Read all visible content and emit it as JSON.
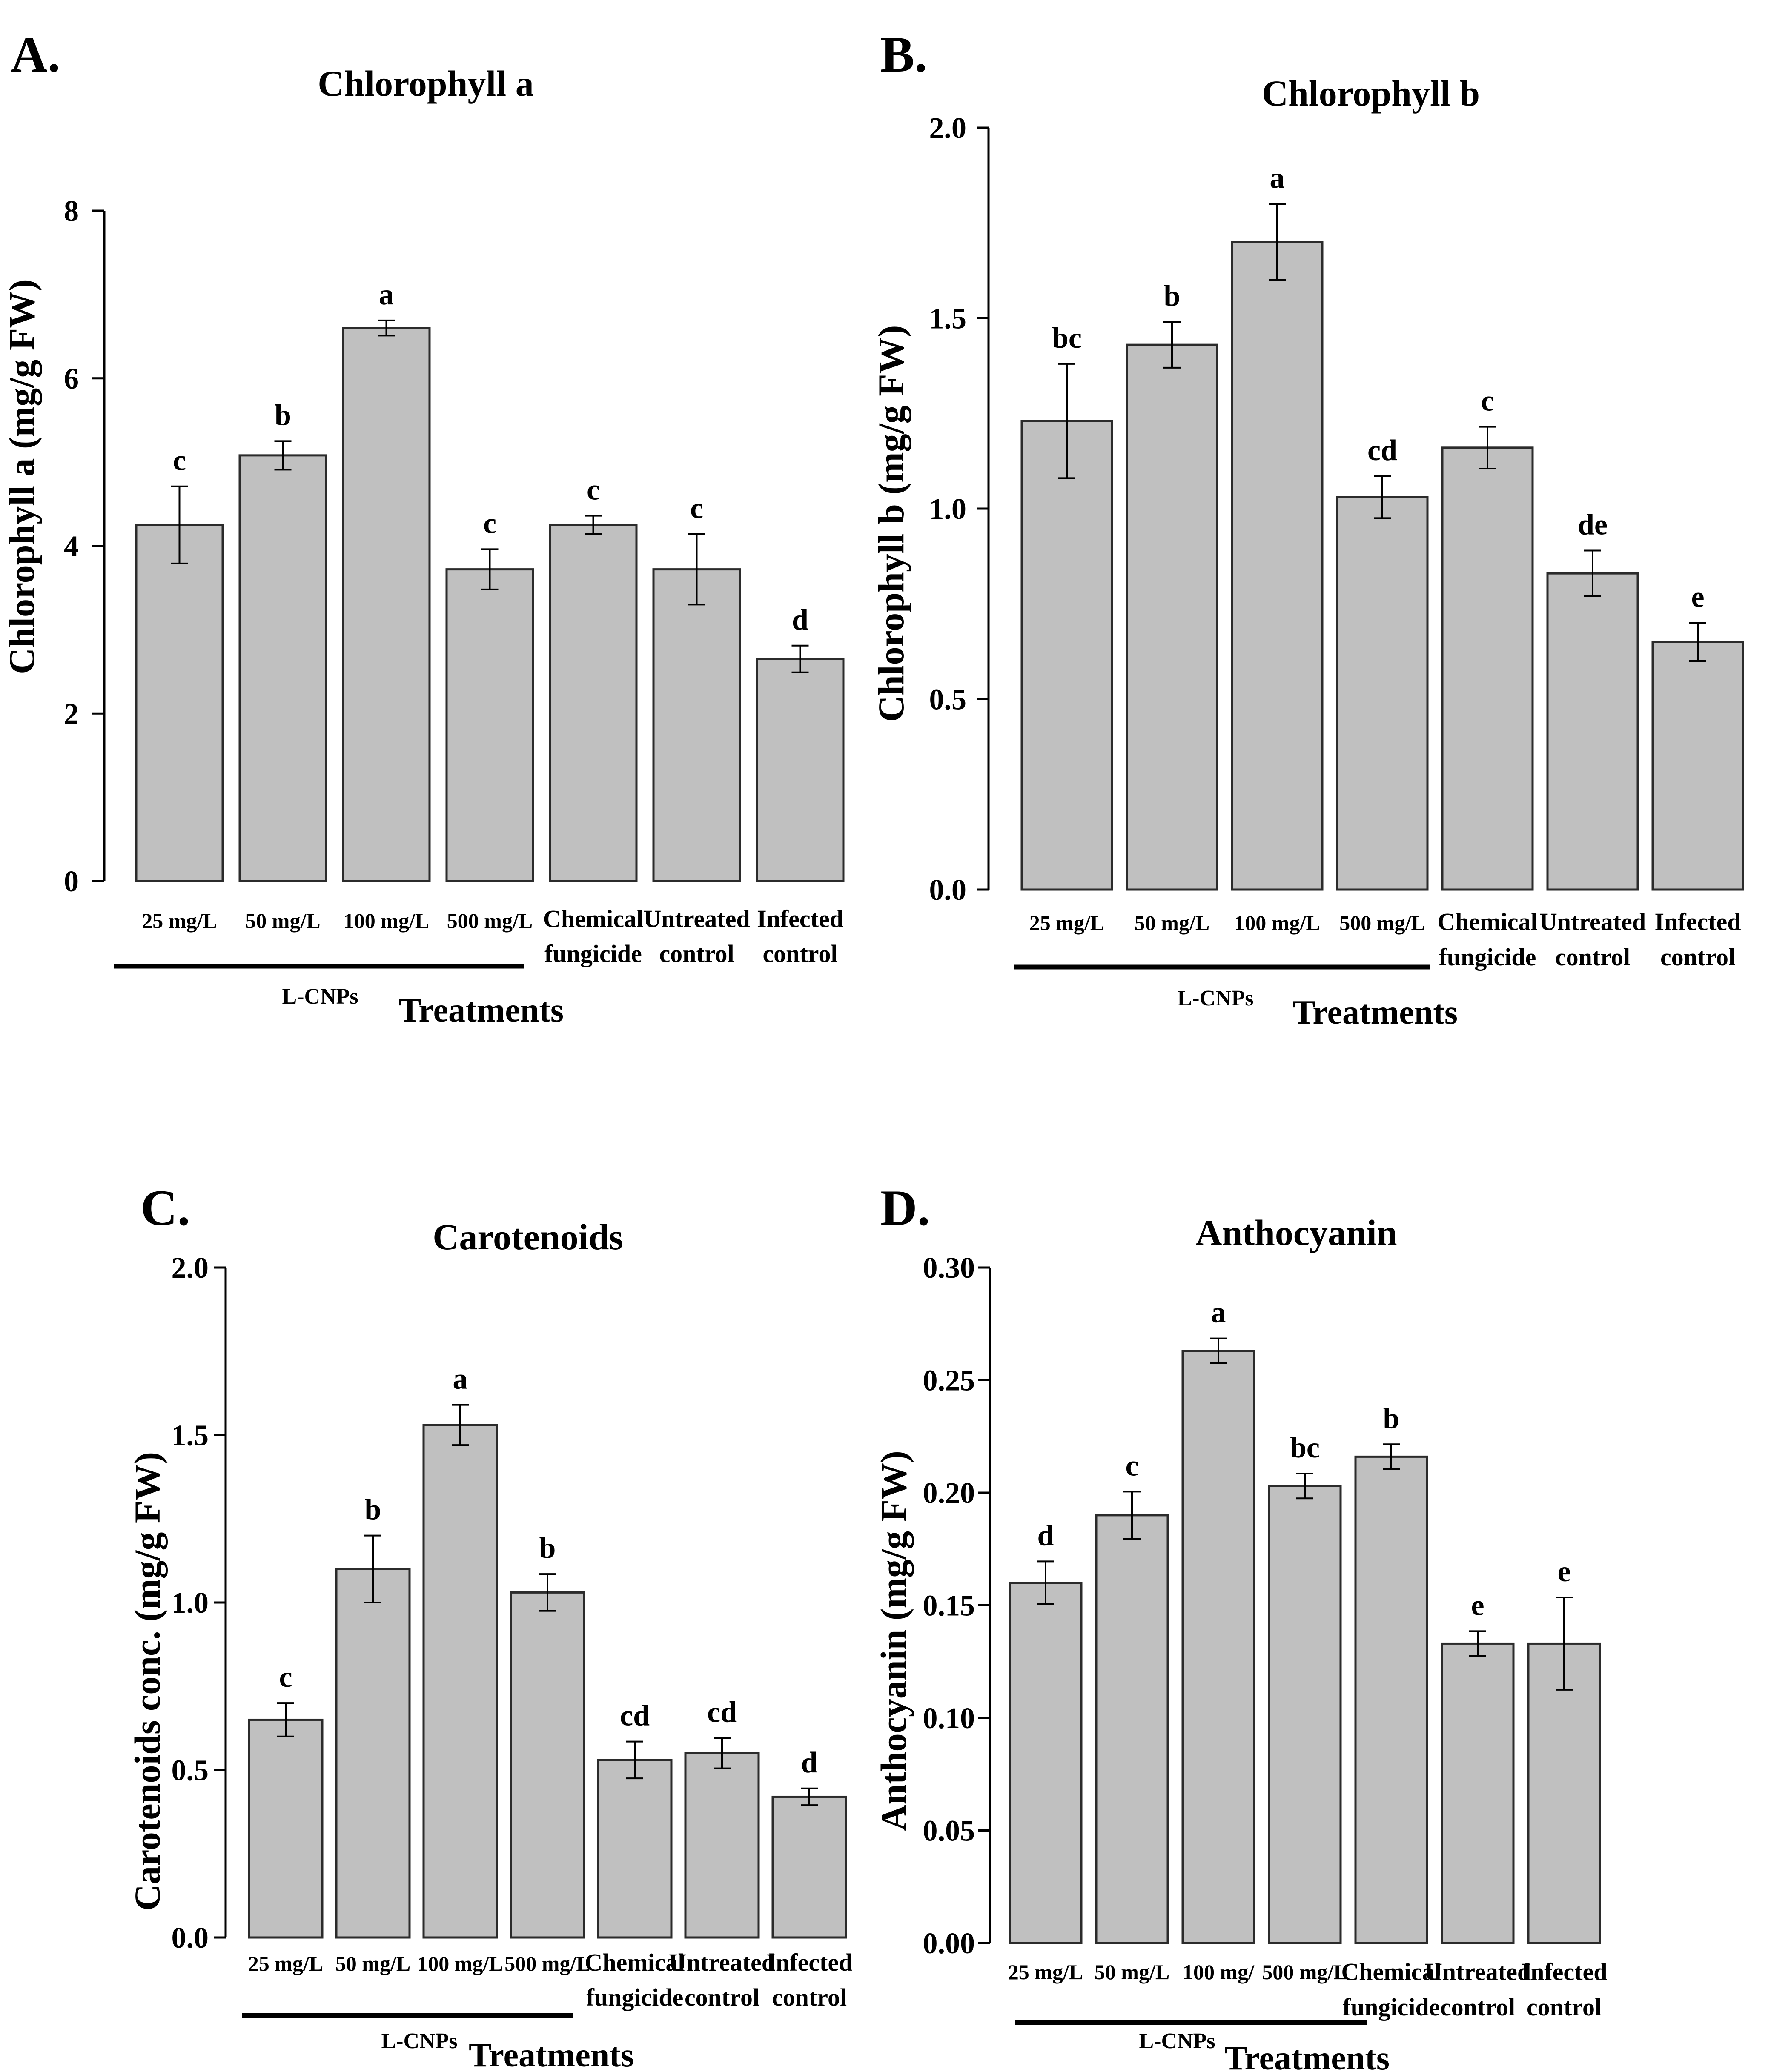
{
  "figure": {
    "background": "#ffffff",
    "bar_fill": "#c0c0c0",
    "bar_stroke": "#2b2b2b"
  },
  "chart_data": [
    {
      "type": "bar",
      "panel": "A.",
      "title": "Chlorophyll  a",
      "ylabel": "Chlorophyll  a (mg/g FW)",
      "xlabel": "Treatments",
      "group_label": "L-CNPs",
      "categories": [
        "25 mg/L",
        "50 mg/L",
        "100 mg/L",
        "500 mg/L",
        "Chemical fungicide",
        "Untreated control",
        "Infected control"
      ],
      "values": [
        4.25,
        5.08,
        6.6,
        3.72,
        4.25,
        3.72,
        2.65
      ],
      "errors": [
        0.46,
        0.17,
        0.09,
        0.24,
        0.11,
        0.42,
        0.16
      ],
      "significance": [
        "c",
        "b",
        "a",
        "c",
        "c",
        "c",
        "d"
      ],
      "ylim": [
        0,
        8
      ],
      "yticks": [
        "0",
        "2",
        "4",
        "6",
        "8"
      ]
    },
    {
      "type": "bar",
      "panel": "B.",
      "title": "Chlorophyll b",
      "ylabel": "Chlorophyll b (mg/g FW)",
      "xlabel": "Treatments",
      "group_label": "L-CNPs",
      "categories": [
        "25 mg/L",
        "50 mg/L",
        "100 mg/L",
        "500 mg/L",
        "Chemical fungicide",
        "Untreated control",
        "Infected control"
      ],
      "values": [
        1.23,
        1.43,
        1.7,
        1.03,
        1.16,
        0.83,
        0.65
      ],
      "errors": [
        0.15,
        0.06,
        0.1,
        0.055,
        0.055,
        0.06,
        0.05
      ],
      "significance": [
        "bc",
        "b",
        "a",
        "cd",
        "c",
        "de",
        "e"
      ],
      "ylim": [
        0,
        2.0
      ],
      "yticks": [
        "0.0",
        "0.5",
        "1.0",
        "1.5",
        "2.0"
      ]
    },
    {
      "type": "bar",
      "panel": "C.",
      "title": "Carotenoids",
      "ylabel": "Carotenoids conc. (mg/g FW)",
      "xlabel": "Treatments",
      "group_label": "L-CNPs",
      "categories": [
        "25 mg/L",
        "50 mg/L",
        "100 mg/L",
        "500 mg/L",
        "Chemical fungicide",
        "Untreated control",
        "Infected control"
      ],
      "values": [
        0.65,
        1.1,
        1.53,
        1.03,
        0.53,
        0.55,
        0.42
      ],
      "errors": [
        0.05,
        0.1,
        0.06,
        0.055,
        0.055,
        0.045,
        0.025
      ],
      "significance": [
        "c",
        "b",
        "a",
        "b",
        "cd",
        "cd",
        "d"
      ],
      "ylim": [
        0,
        2.0
      ],
      "yticks": [
        "0.0",
        "0.5",
        "1.0",
        "1.5",
        "2.0"
      ]
    },
    {
      "type": "bar",
      "panel": "D.",
      "title": "Anthocyanin",
      "ylabel": "Anthocyanin (mg/g FW)",
      "xlabel": "Treatments",
      "group_label": "L-CNPs",
      "categories": [
        "25 mg/L",
        "50 mg/L",
        "100 mg/",
        "500 mg/L",
        "Chemical fungicide",
        "Untreated control",
        "Infected control"
      ],
      "values": [
        0.16,
        0.19,
        0.263,
        0.203,
        0.216,
        0.133,
        0.133
      ],
      "errors": [
        0.0095,
        0.0105,
        0.0055,
        0.0055,
        0.0055,
        0.0055,
        0.0205
      ],
      "significance": [
        "d",
        "c",
        "a",
        "bc",
        "b",
        "e",
        "e"
      ],
      "ylim": [
        0,
        0.3
      ],
      "yticks": [
        "0.00",
        "0.05",
        "0.10",
        "0.15",
        "0.20",
        "0.25",
        "0.30"
      ]
    }
  ]
}
